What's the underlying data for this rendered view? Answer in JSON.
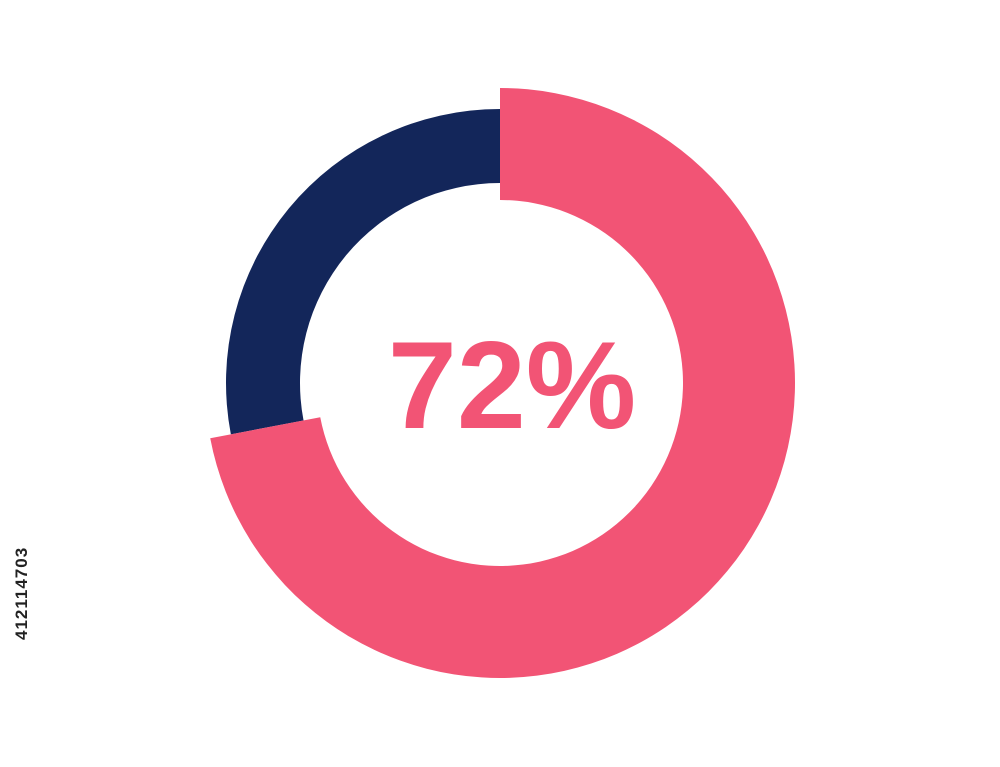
{
  "chart_data": {
    "type": "pie",
    "style": "donut",
    "title": "",
    "center_label": "72%",
    "values": [
      72,
      28
    ],
    "colors": [
      "#F25475",
      "#13265A"
    ],
    "start": "12 o'clock",
    "direction": "clockwise",
    "legend": "none"
  },
  "watermark": {
    "id_text": "412114703"
  }
}
